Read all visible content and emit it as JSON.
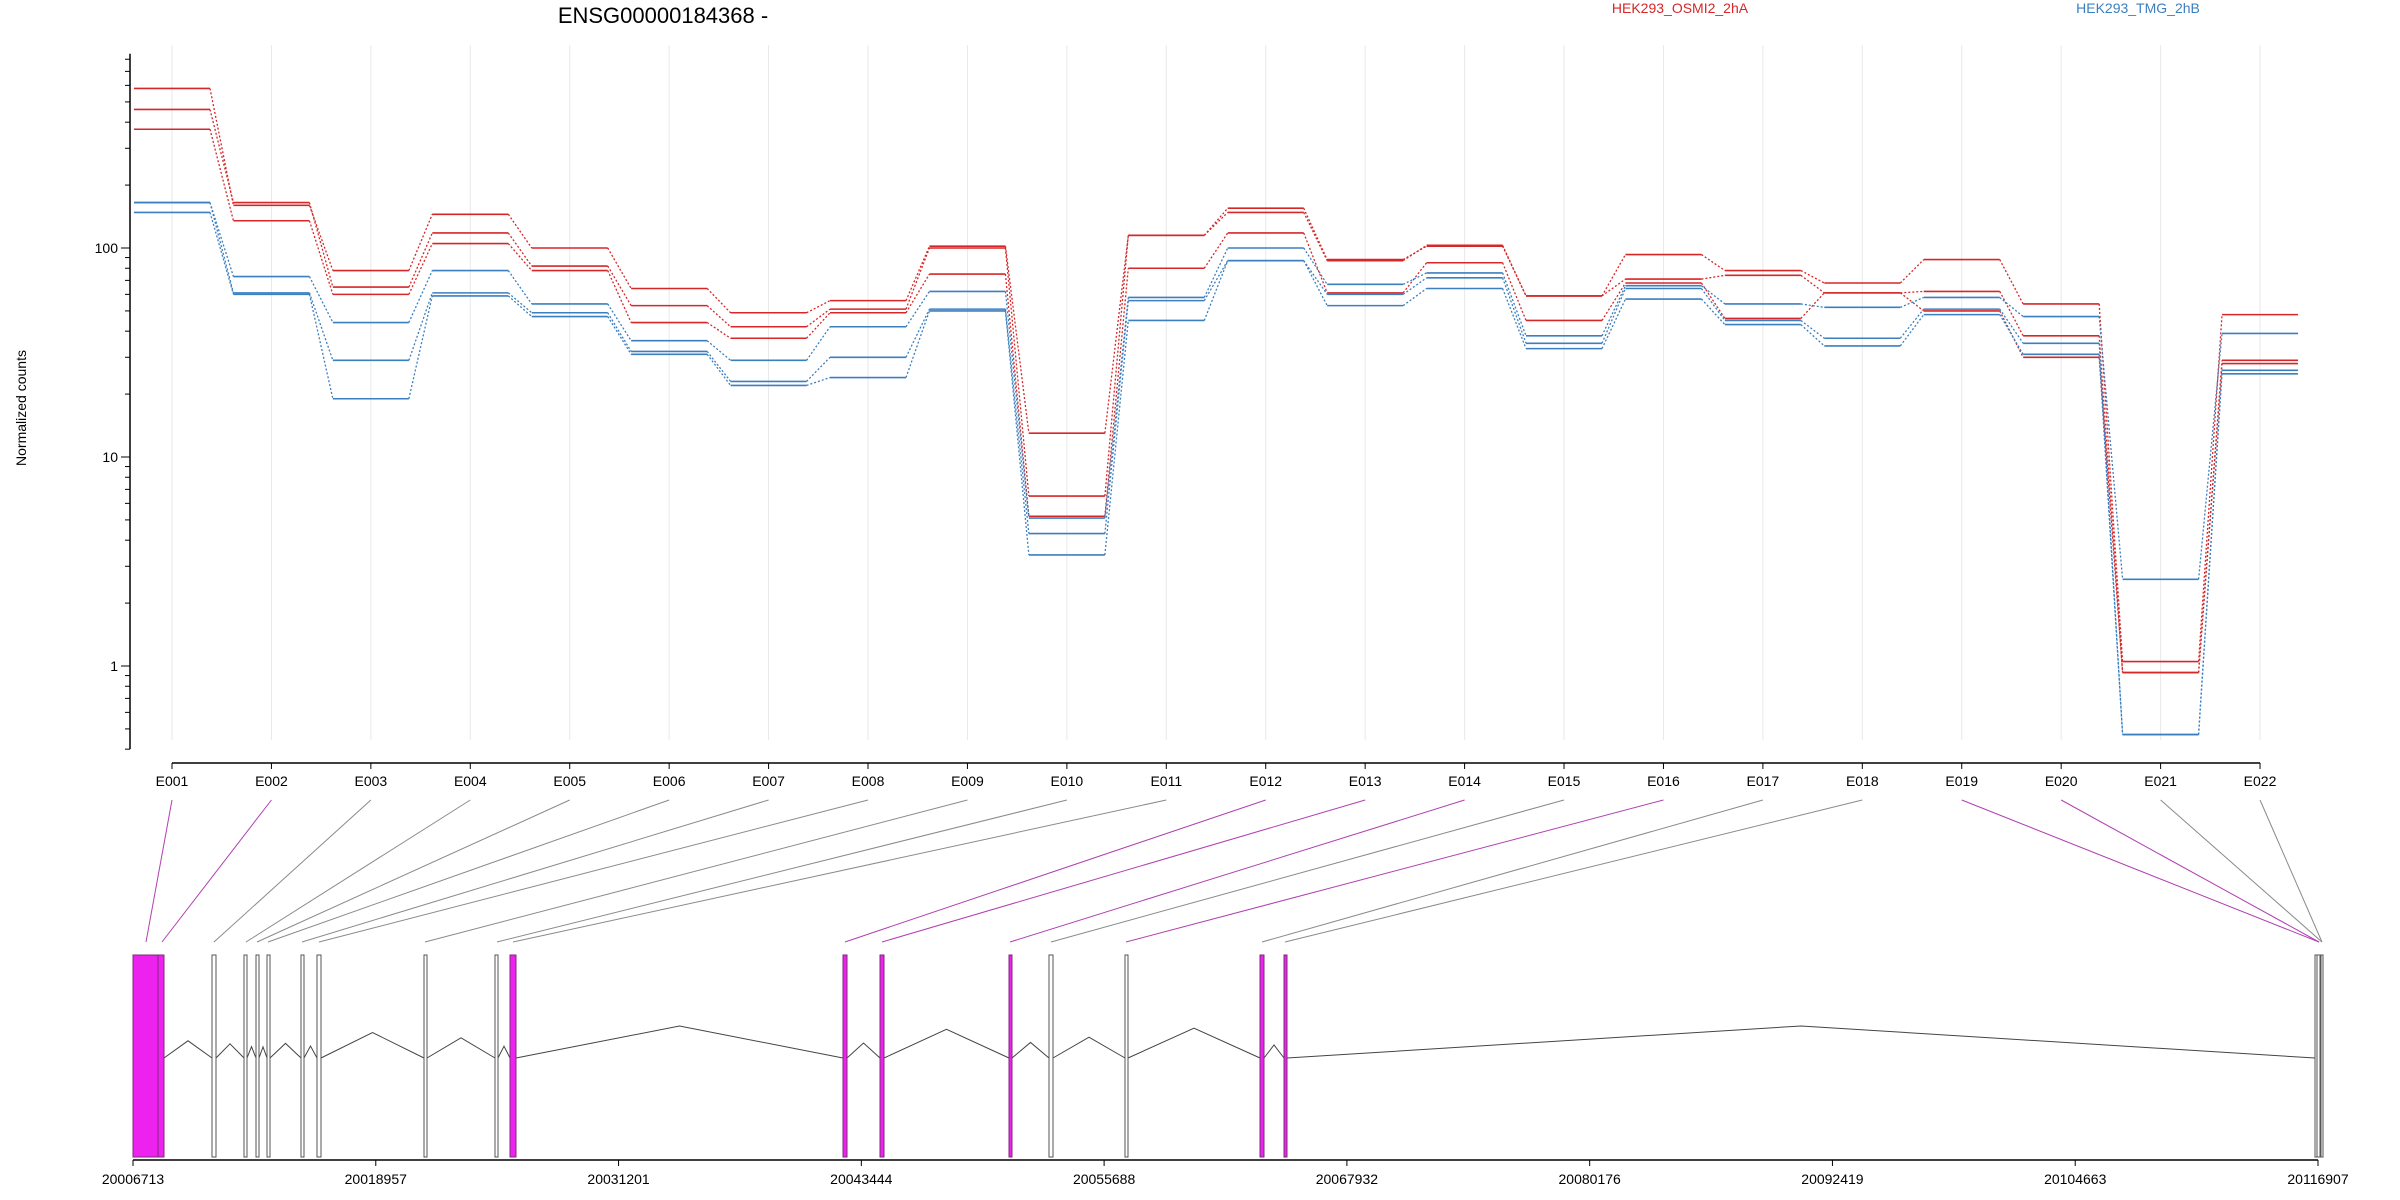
{
  "chart_data": {
    "type": "line",
    "title": "ENSG00000184368 -",
    "ylabel": "Normalized counts",
    "yscale": "log",
    "ylim": [
      0.4,
      850
    ],
    "y_ticks": [
      1,
      10,
      100
    ],
    "y_tick_labels": [
      "1",
      "10",
      "100"
    ],
    "grid": "vertical",
    "legend_placement": "top",
    "categories": [
      "E001",
      "E002",
      "E003",
      "E004",
      "E005",
      "E006",
      "E007",
      "E008",
      "E009",
      "E010",
      "E011",
      "E012",
      "E013",
      "E014",
      "E015",
      "E016",
      "E017",
      "E018",
      "E019",
      "E020",
      "E021",
      "E022"
    ],
    "series": [
      {
        "name": "HEK293_OSMI2_2hA",
        "color": "#d62728",
        "label_color": "#d62728",
        "lines": [
          [
            580,
            160,
            78,
            145,
            100,
            64,
            49,
            56,
            102,
            13,
            115,
            155,
            88,
            102,
            59,
            93,
            78,
            68,
            88,
            54,
            1.05,
            48
          ],
          [
            460,
            165,
            65,
            118,
            82,
            53,
            42,
            51,
            100,
            6.5,
            115,
            148,
            87,
            103,
            59,
            71,
            74,
            61,
            62,
            38,
            0.93,
            29
          ],
          [
            370,
            135,
            60,
            105,
            78,
            44,
            37,
            49,
            75,
            5.2,
            80,
            118,
            61,
            85,
            45,
            68,
            46,
            61,
            50,
            30,
            0.93,
            28
          ]
        ]
      },
      {
        "name": "HEK293_TMG_2hB",
        "color": "#3b7fbf",
        "label_color": "#3b7fbf",
        "lines": [
          [
            165,
            73,
            44,
            78,
            54,
            36,
            29,
            42,
            62,
            5.1,
            58,
            100,
            67,
            76,
            38,
            66,
            54,
            52,
            58,
            47,
            2.6,
            39
          ],
          [
            165,
            61,
            29,
            61,
            49,
            32,
            23,
            30,
            51,
            4.3,
            56,
            87,
            60,
            72,
            35,
            64,
            45,
            37,
            51,
            35,
            0.47,
            26
          ],
          [
            148,
            60,
            19,
            59,
            47,
            31,
            22,
            24,
            50,
            3.4,
            45,
            87,
            53,
            64,
            33,
            57,
            43,
            34,
            48,
            31,
            0.47,
            25
          ]
        ]
      }
    ],
    "exon_links_highlight": [
      true,
      true,
      false,
      false,
      false,
      false,
      false,
      false,
      false,
      false,
      false,
      true,
      true,
      true,
      false,
      true,
      false,
      false,
      true,
      true,
      false,
      false
    ],
    "genome": {
      "ticks": [
        "20006713",
        "20018957",
        "20031201",
        "20043444",
        "20055688",
        "20067932",
        "20080176",
        "20092419",
        "20104663",
        "20116907"
      ],
      "start": 20006713,
      "end": 20116907
    }
  }
}
